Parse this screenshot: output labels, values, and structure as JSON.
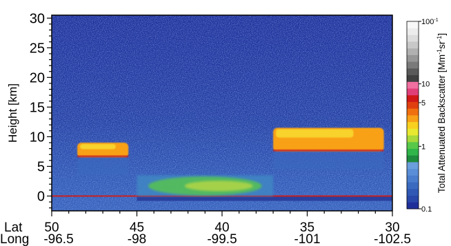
{
  "chart_data": {
    "type": "heatmap",
    "title": "",
    "ylabel": "Height [km]",
    "ylim": [
      -2.5,
      30.5
    ],
    "y_ticks": [
      0,
      5,
      10,
      15,
      20,
      25,
      30
    ],
    "x_row_labels": [
      "Lat",
      "Long"
    ],
    "x_ticks": [
      {
        "lat": "50",
        "long": "-96.5"
      },
      {
        "lat": "45",
        "long": "-98"
      },
      {
        "lat": "40",
        "long": "-99.5"
      },
      {
        "lat": "35",
        "long": "-101"
      },
      {
        "lat": "30",
        "long": "-102.5"
      }
    ],
    "xlim_lat": [
      50,
      30
    ],
    "colorbar": {
      "label_main": "Total Attenuated Backscatter [Mm",
      "label_exp1": "-1",
      "label_mid": "sr",
      "label_exp2": "-1",
      "label_end": "]",
      "scale": "log",
      "range": [
        0.1,
        100
      ],
      "tick_labels": [
        "100",
        "10",
        "5",
        "1",
        "0.1"
      ],
      "tick_exp": "-1",
      "colors": [
        "#1f2f9a",
        "#2847a8",
        "#3058b4",
        "#3a6ac0",
        "#4a7dcc",
        "#5a8ed6",
        "#6b9edc",
        "#1e8a3c",
        "#2fb54a",
        "#58c84a",
        "#a8d83a",
        "#e8e830",
        "#f8d020",
        "#f8a018",
        "#f07010",
        "#e04010",
        "#d01818",
        "#e0407a",
        "#f070a0",
        "#404040",
        "#5a5a5a",
        "#7a7a7a",
        "#969696",
        "#b0b0b0",
        "#c8c8c8",
        "#dcdcdc",
        "#ececec",
        "#f8f8f8"
      ]
    },
    "features": [
      {
        "name": "surface",
        "lat_start": 50,
        "lat_end": 30,
        "height": 0,
        "color": "#c82020"
      },
      {
        "name": "boundary-layer",
        "lat_start": 45,
        "lat_end": 37,
        "height_bottom": 0,
        "height_top": 3.5,
        "color": "#58c84a"
      },
      {
        "name": "cloud-left",
        "lat_start": 48.5,
        "lat_end": 45.5,
        "height_bottom": 6.5,
        "height_top": 9,
        "color": "#f8a018"
      },
      {
        "name": "cloud-right",
        "lat_start": 37,
        "lat_end": 30.5,
        "height_bottom": 7.5,
        "height_top": 11.5,
        "color": "#f8a018"
      }
    ]
  }
}
